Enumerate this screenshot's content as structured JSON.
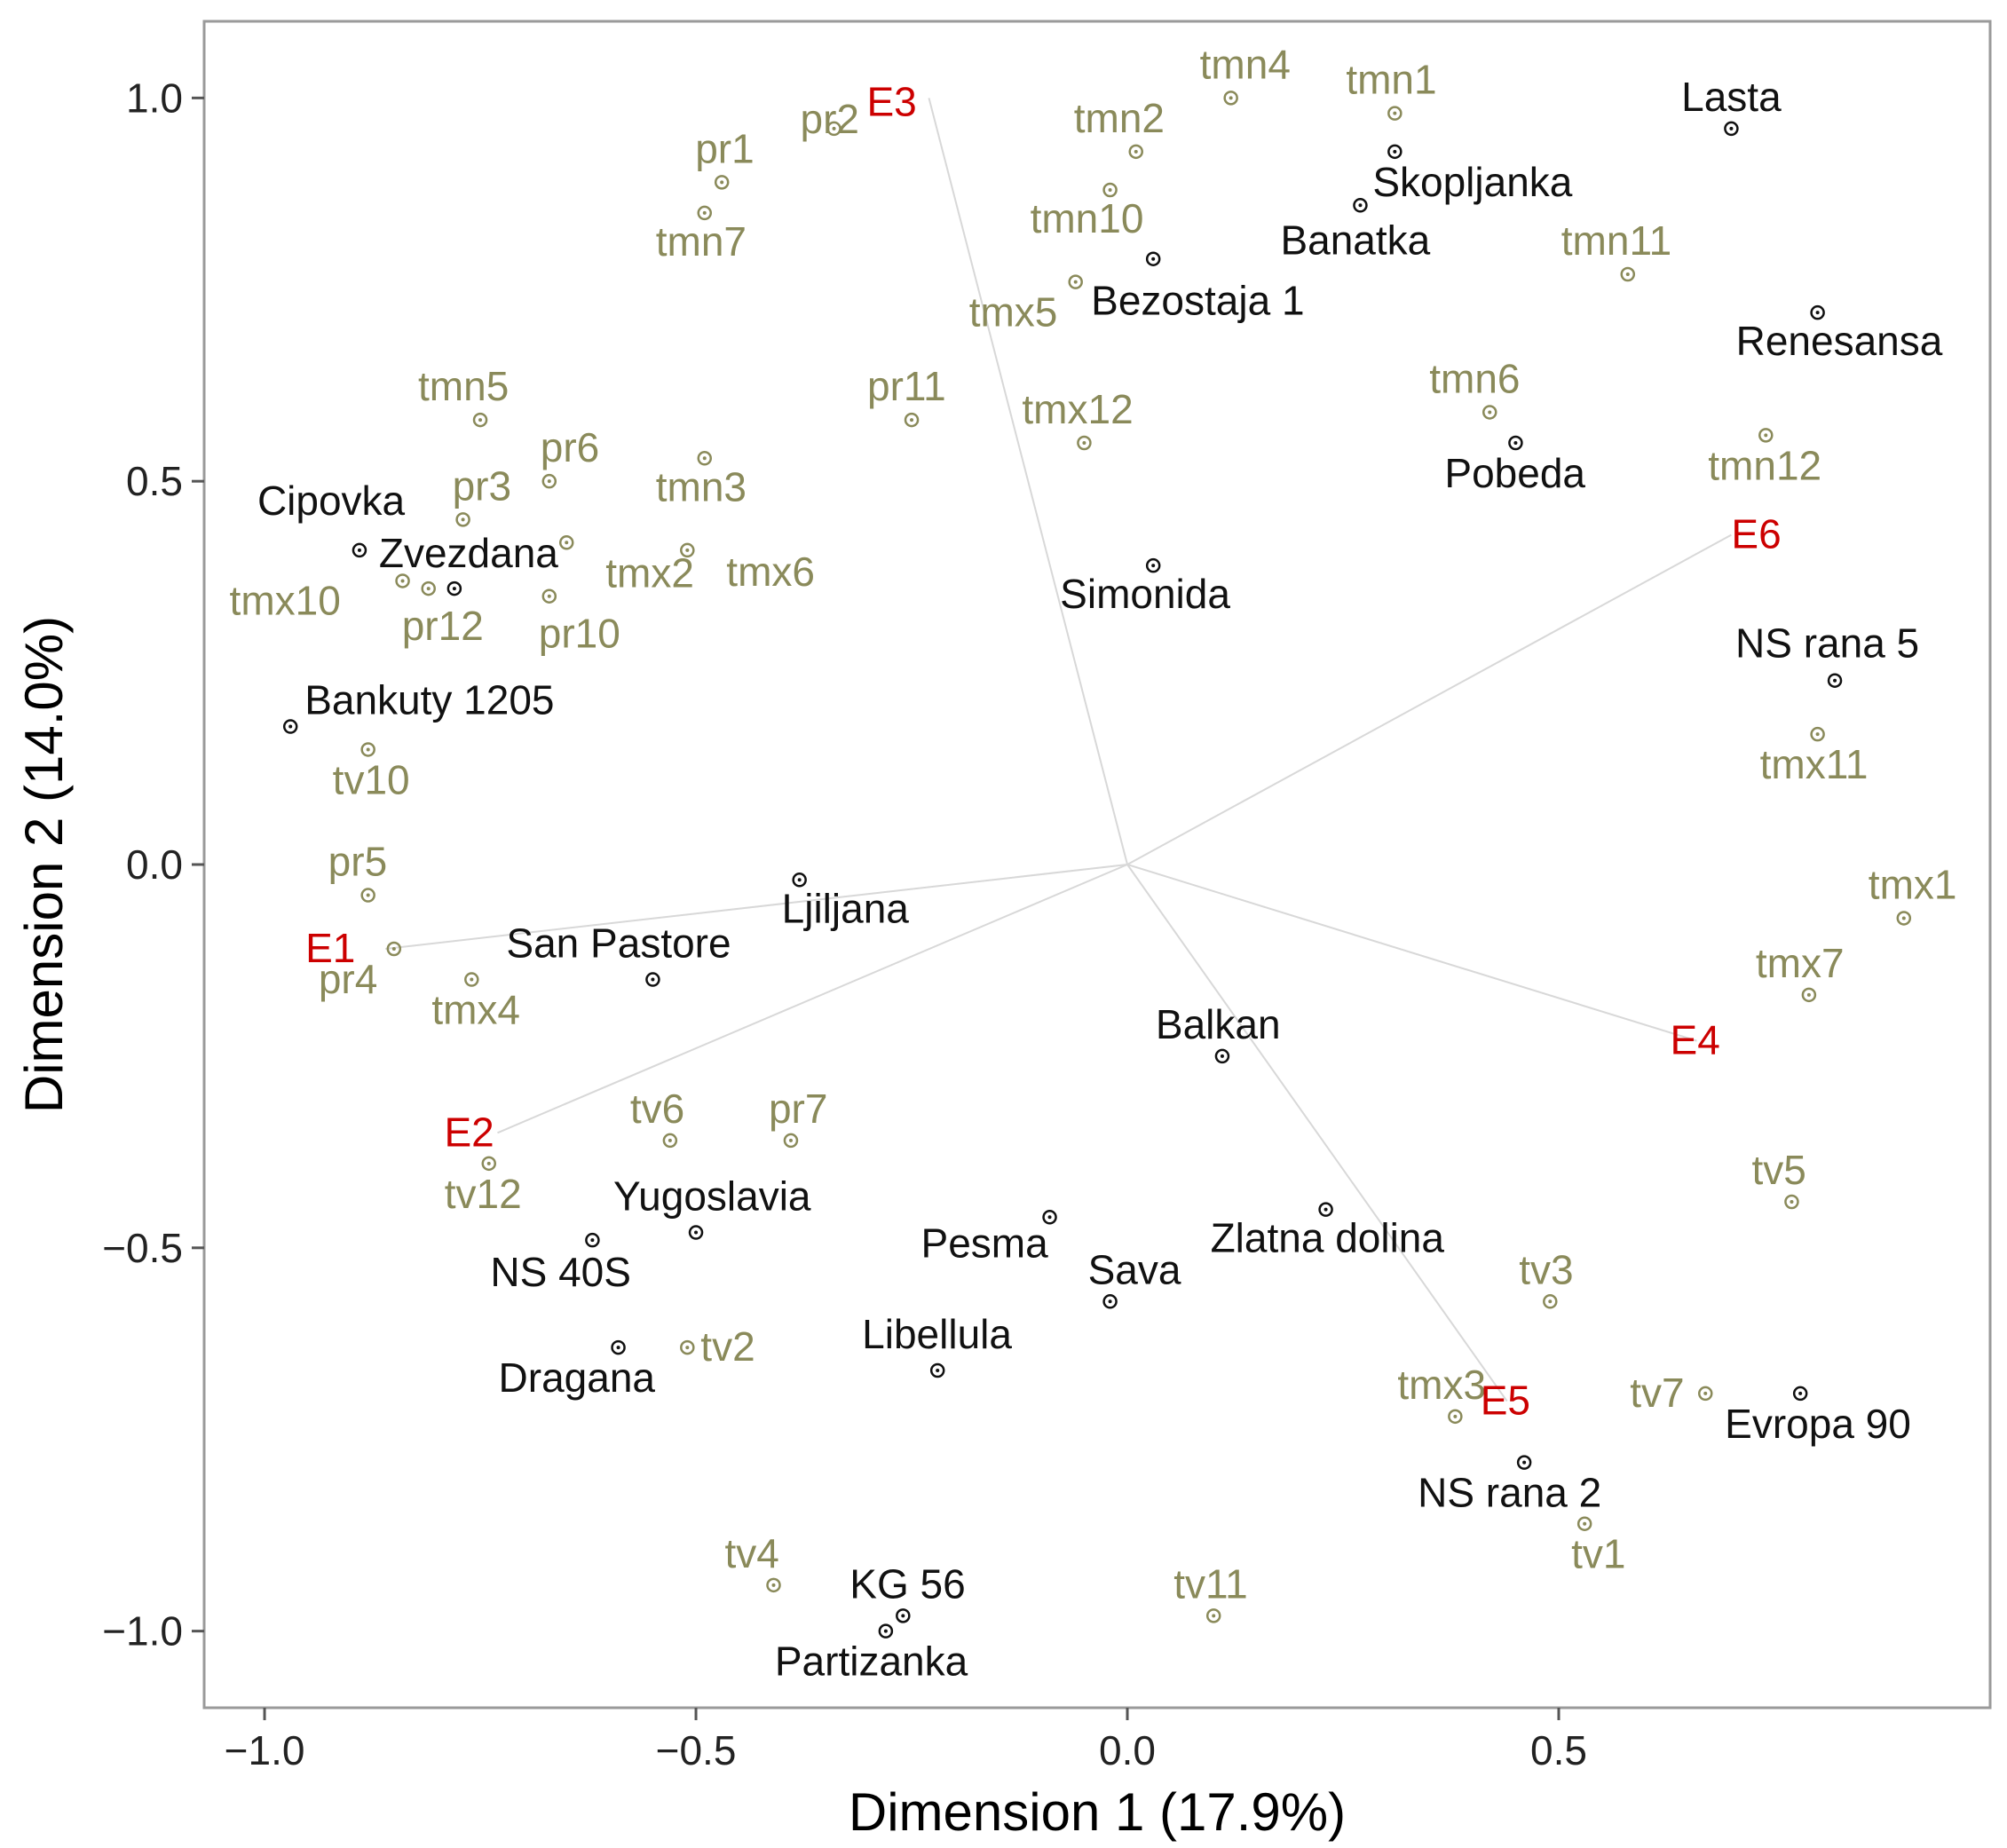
{
  "chart_data": {
    "type": "scatter",
    "title": "",
    "xlabel": "Dimension 1 (17.9%)",
    "ylabel": "Dimension 2 (14.0%)",
    "xlim": [
      -1.07,
      1.0
    ],
    "ylim": [
      -1.1,
      1.1
    ],
    "xticks": [
      -1.0,
      -0.5,
      0.0,
      0.5
    ],
    "xtick_labels": [
      "−1.0",
      "−0.5",
      "0.0",
      "0.5"
    ],
    "yticks": [
      -1.0,
      -0.5,
      0.0,
      0.5,
      1.0
    ],
    "ytick_labels": [
      "−1.0",
      "−0.5",
      "0.0",
      "0.5",
      "1.0"
    ],
    "grid": false,
    "colors": {
      "genotype": "#111111",
      "covariate": "#8a8a5a",
      "environment": "#cc0000",
      "vector": "#d8d8d8",
      "frame": "#9a9a9a"
    },
    "genotypes": [
      {
        "label": "Lasta",
        "x": 0.7,
        "y": 0.96
      },
      {
        "label": "Skopljanka",
        "x": 0.31,
        "y": 0.93
      },
      {
        "label": "Banatka",
        "x": 0.27,
        "y": 0.86
      },
      {
        "label": "Bezostaja 1",
        "x": 0.03,
        "y": 0.79
      },
      {
        "label": "Renesansa",
        "x": 0.8,
        "y": 0.72
      },
      {
        "label": "Pobeda",
        "x": 0.45,
        "y": 0.55
      },
      {
        "label": "Simonida",
        "x": 0.03,
        "y": 0.39
      },
      {
        "label": "Cipovka",
        "x": -0.89,
        "y": 0.41
      },
      {
        "label": "Zvezdana",
        "x": -0.78,
        "y": 0.36
      },
      {
        "label": "Bankuty 1205",
        "x": -0.97,
        "y": 0.18
      },
      {
        "label": "NS rana 5",
        "x": 0.82,
        "y": 0.24
      },
      {
        "label": "Ljiljana",
        "x": -0.38,
        "y": -0.02
      },
      {
        "label": "San Pastore",
        "x": -0.55,
        "y": -0.15
      },
      {
        "label": "Balkan",
        "x": 0.11,
        "y": -0.25
      },
      {
        "label": "Yugoslavia",
        "x": -0.5,
        "y": -0.48
      },
      {
        "label": "NS 40S",
        "x": -0.62,
        "y": -0.49
      },
      {
        "label": "Pesma",
        "x": -0.09,
        "y": -0.46
      },
      {
        "label": "Zlatna dolina",
        "x": 0.23,
        "y": -0.45
      },
      {
        "label": "Sava",
        "x": -0.02,
        "y": -0.57
      },
      {
        "label": "Dragana",
        "x": -0.59,
        "y": -0.63
      },
      {
        "label": "Libellula",
        "x": -0.22,
        "y": -0.66
      },
      {
        "label": "Evropa 90",
        "x": 0.78,
        "y": -0.69
      },
      {
        "label": "NS rana 2",
        "x": 0.46,
        "y": -0.78
      },
      {
        "label": "KG 56",
        "x": -0.26,
        "y": -0.98
      },
      {
        "label": "Partizanka",
        "x": -0.28,
        "y": -1.0
      }
    ],
    "covariates": [
      {
        "label": "tmn4",
        "x": 0.12,
        "y": 1.0
      },
      {
        "label": "tmn1",
        "x": 0.31,
        "y": 0.98
      },
      {
        "label": "pr2",
        "x": -0.34,
        "y": 0.96
      },
      {
        "label": "tmn2",
        "x": 0.01,
        "y": 0.93
      },
      {
        "label": "pr1",
        "x": -0.47,
        "y": 0.89
      },
      {
        "label": "tmn10",
        "x": -0.02,
        "y": 0.88
      },
      {
        "label": "tmn7",
        "x": -0.49,
        "y": 0.85
      },
      {
        "label": "tmn11",
        "x": 0.58,
        "y": 0.77
      },
      {
        "label": "tmx5",
        "x": -0.06,
        "y": 0.76
      },
      {
        "label": "tmn6",
        "x": 0.42,
        "y": 0.59
      },
      {
        "label": "tmn5",
        "x": -0.75,
        "y": 0.58
      },
      {
        "label": "pr11",
        "x": -0.25,
        "y": 0.58
      },
      {
        "label": "tmx12",
        "x": -0.05,
        "y": 0.55
      },
      {
        "label": "tmn12",
        "x": 0.74,
        "y": 0.56
      },
      {
        "label": "tmn3",
        "x": -0.49,
        "y": 0.53
      },
      {
        "label": "pr6",
        "x": -0.67,
        "y": 0.5
      },
      {
        "label": "pr3",
        "x": -0.77,
        "y": 0.45
      },
      {
        "label": "tmx2",
        "x": -0.65,
        "y": 0.42
      },
      {
        "label": "tmx6",
        "x": -0.51,
        "y": 0.41
      },
      {
        "label": "tmx10",
        "x": -0.84,
        "y": 0.37
      },
      {
        "label": "pr12",
        "x": -0.81,
        "y": 0.36
      },
      {
        "label": "pr10",
        "x": -0.67,
        "y": 0.35
      },
      {
        "label": "tmx11",
        "x": 0.8,
        "y": 0.17
      },
      {
        "label": "tv10",
        "x": -0.88,
        "y": 0.15
      },
      {
        "label": "pr5",
        "x": -0.88,
        "y": -0.04
      },
      {
        "label": "tmx1",
        "x": 0.9,
        "y": -0.07
      },
      {
        "label": "pr4",
        "x": -0.85,
        "y": -0.11
      },
      {
        "label": "tmx4",
        "x": -0.76,
        "y": -0.15
      },
      {
        "label": "tmx7",
        "x": 0.79,
        "y": -0.17
      },
      {
        "label": "tv6",
        "x": -0.53,
        "y": -0.36
      },
      {
        "label": "pr7",
        "x": -0.39,
        "y": -0.36
      },
      {
        "label": "tv12",
        "x": -0.74,
        "y": -0.39
      },
      {
        "label": "tv5",
        "x": 0.77,
        "y": -0.44
      },
      {
        "label": "tv3",
        "x": 0.49,
        "y": -0.57
      },
      {
        "label": "tv2",
        "x": -0.51,
        "y": -0.63
      },
      {
        "label": "tv7",
        "x": 0.67,
        "y": -0.69
      },
      {
        "label": "tmx3",
        "x": 0.38,
        "y": -0.72
      },
      {
        "label": "tv1",
        "x": 0.53,
        "y": -0.86
      },
      {
        "label": "tv4",
        "x": -0.41,
        "y": -0.94
      },
      {
        "label": "tv11",
        "x": 0.1,
        "y": -0.98
      }
    ],
    "environments": [
      {
        "label": "E1",
        "x": -0.86,
        "y": -0.11
      },
      {
        "label": "E2",
        "x": -0.73,
        "y": -0.35
      },
      {
        "label": "E3",
        "x": -0.23,
        "y": 1.0
      },
      {
        "label": "E4",
        "x": 0.66,
        "y": -0.23
      },
      {
        "label": "E5",
        "x": 0.44,
        "y": -0.7
      },
      {
        "label": "E6",
        "x": 0.7,
        "y": 0.43
      }
    ]
  }
}
